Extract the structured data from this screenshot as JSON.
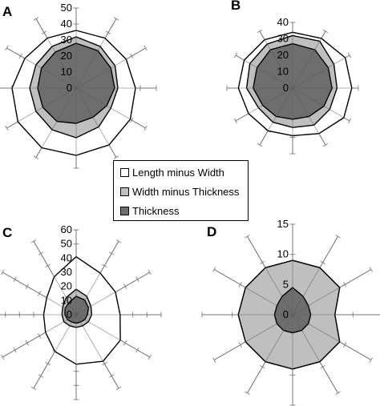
{
  "legend": [
    {
      "label": "Length minus Width",
      "color": "#ffffff"
    },
    {
      "label": "Width minus Thickness",
      "color": "#bfbfbf"
    },
    {
      "label": "Thickness",
      "color": "#6e6e6e"
    }
  ],
  "chart_data": [
    {
      "type": "radar",
      "panel": "A",
      "ylim": [
        0,
        50
      ],
      "ticks": [
        "0",
        "10",
        "20",
        "30",
        "40",
        "50"
      ],
      "series": [
        {
          "values": [
            36,
            36,
            36,
            37,
            39,
            41,
            42,
            43,
            42,
            40,
            37,
            36
          ]
        },
        {
          "values": [
            32,
            30,
            28,
            26,
            25,
            28,
            31,
            30,
            29,
            29,
            29,
            30
          ]
        },
        {
          "values": [
            28,
            27,
            25,
            24,
            22,
            21,
            22,
            24,
            24,
            24,
            25,
            26
          ]
        }
      ]
    },
    {
      "type": "radar",
      "panel": "B",
      "ylim": [
        0,
        40
      ],
      "ticks": [
        "0",
        "10",
        "20",
        "30",
        "40"
      ],
      "series": [
        {
          "values": [
            34,
            35,
            37,
            36,
            36,
            32,
            29,
            30,
            31,
            33,
            34,
            34
          ]
        },
        {
          "values": [
            32,
            33,
            29,
            27,
            26,
            26,
            24,
            24,
            24,
            28,
            30,
            31
          ]
        },
        {
          "values": [
            27,
            27,
            25,
            24,
            22,
            20,
            19,
            20,
            21,
            24,
            25,
            27
          ]
        }
      ]
    },
    {
      "type": "radar",
      "panel": "C",
      "ylim": [
        0,
        60
      ],
      "ticks": [
        "0",
        "10",
        "20",
        "30",
        "40",
        "50",
        "60"
      ],
      "series": [
        {
          "values": [
            41,
            34,
            32,
            31,
            36,
            38,
            35,
            30,
            25,
            23,
            24,
            31
          ]
        },
        {
          "values": [
            18,
            15,
            12,
            11,
            10,
            9,
            9,
            9,
            10,
            10,
            11,
            14
          ]
        },
        {
          "values": [
            13,
            12,
            10,
            8,
            7,
            6,
            6,
            6,
            7,
            8,
            9,
            10
          ]
        }
      ]
    },
    {
      "type": "radar",
      "panel": "D",
      "ylim": [
        0,
        15
      ],
      "ticks": [
        "0",
        "5",
        "10",
        "15"
      ],
      "series": [
        {
          "values": [
            9,
            9,
            9,
            7,
            9,
            9,
            9,
            9,
            9,
            9,
            9,
            9
          ]
        },
        {
          "values": [
            9,
            9,
            9,
            7,
            9,
            9,
            9,
            9,
            9,
            9,
            9,
            9
          ]
        },
        {
          "values": [
            4.5,
            3.5,
            3,
            3,
            3,
            3,
            3,
            3,
            3,
            3,
            3,
            3.5
          ]
        }
      ]
    }
  ]
}
